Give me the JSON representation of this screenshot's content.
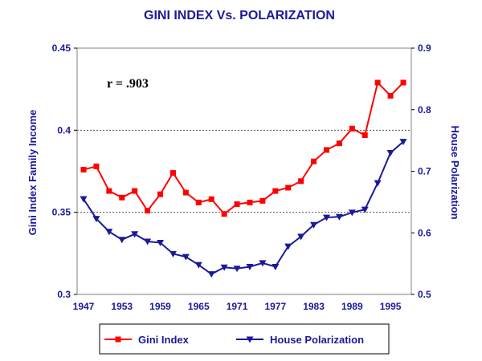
{
  "chart_data": {
    "type": "line",
    "title": "GINI INDEX Vs. POLARIZATION",
    "xlabel": "",
    "ylabel": "Gini Index Family Income",
    "y2label": "House Polarization",
    "annotation": "r = .903",
    "xlim": [
      1947,
      1997
    ],
    "xticks": [
      "1947",
      "1953",
      "1959",
      "1965",
      "1971",
      "1977",
      "1983",
      "1989",
      "1995"
    ],
    "y_left": {
      "min": 0.3,
      "max": 0.45,
      "ticks": [
        "0.3",
        "0.35",
        "0.4",
        "0.45"
      ],
      "gridlines": [
        0.35,
        0.4
      ]
    },
    "y_right": {
      "min": 0.5,
      "max": 0.9,
      "ticks": [
        "0.5",
        "0.6",
        "0.7",
        "0.8",
        "0.9"
      ]
    },
    "x": [
      1947,
      1949,
      1951,
      1953,
      1955,
      1957,
      1959,
      1961,
      1963,
      1965,
      1967,
      1969,
      1971,
      1973,
      1975,
      1977,
      1979,
      1981,
      1983,
      1985,
      1987,
      1989,
      1991,
      1993,
      1995,
      1997
    ],
    "series": [
      {
        "name": "Gini Index",
        "axis": "left",
        "color": "#ff0000",
        "marker": "square",
        "values": [
          0.376,
          0.378,
          0.363,
          0.359,
          0.363,
          0.351,
          0.361,
          0.374,
          0.362,
          0.356,
          0.358,
          0.349,
          0.355,
          0.356,
          0.357,
          0.363,
          0.365,
          0.369,
          0.381,
          0.388,
          0.392,
          0.401,
          0.397,
          0.429,
          0.421,
          0.429
        ]
      },
      {
        "name": "House Polarization",
        "axis": "right",
        "color": "#1a1a99",
        "marker": "triangle-down",
        "values": [
          0.655,
          0.623,
          0.602,
          0.589,
          0.598,
          0.586,
          0.584,
          0.566,
          0.561,
          0.548,
          0.533,
          0.544,
          0.542,
          0.545,
          0.551,
          0.545,
          0.578,
          0.594,
          0.613,
          0.625,
          0.626,
          0.633,
          0.638,
          0.681,
          0.73,
          0.748
        ]
      }
    ],
    "legend": [
      "Gini Index",
      "House Polarization"
    ],
    "legend_position": "bottom"
  }
}
